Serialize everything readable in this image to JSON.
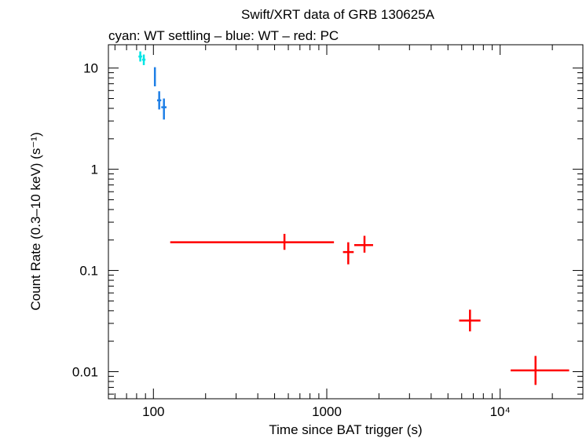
{
  "chart_data": {
    "type": "scatter",
    "title": "Swift/XRT data of GRB 130625A",
    "subtitle": "cyan: WT settling – blue: WT – red: PC",
    "xlabel": "Time since BAT trigger (s)",
    "ylabel": "Count Rate (0.3–10 keV) (s⁻¹)",
    "x_scale": "log",
    "y_scale": "log",
    "xlim": [
      55,
      30000
    ],
    "ylim": [
      0.0054,
      17
    ],
    "x_ticks": [
      {
        "value": 100,
        "label": "100"
      },
      {
        "value": 1000,
        "label": "1000"
      },
      {
        "value": 10000,
        "label": "10⁴"
      }
    ],
    "y_ticks": [
      {
        "value": 0.01,
        "label": "0.01"
      },
      {
        "value": 0.1,
        "label": "0.1"
      },
      {
        "value": 1,
        "label": "1"
      },
      {
        "value": 10,
        "label": "10"
      }
    ],
    "grid": false,
    "series": [
      {
        "color": "#00e5e5",
        "points": [
          {
            "x": 84,
            "xlo": 82,
            "xhi": 86,
            "y": 13.0,
            "ylo": 11.6,
            "yhi": 14.6
          },
          {
            "x": 88,
            "xlo": 86,
            "xhi": 90,
            "y": 12.1,
            "ylo": 10.7,
            "yhi": 13.6
          }
        ]
      },
      {
        "color": "#1e7fe6",
        "points": [
          {
            "x": 102,
            "xlo": 101,
            "xhi": 103,
            "y": 8.4,
            "ylo": 6.6,
            "yhi": 10.2
          },
          {
            "x": 108,
            "xlo": 105,
            "xhi": 111,
            "y": 4.8,
            "ylo": 3.9,
            "yhi": 5.9
          },
          {
            "x": 115,
            "xlo": 111,
            "xhi": 119,
            "y": 4.1,
            "ylo": 3.1,
            "yhi": 5.0
          }
        ]
      },
      {
        "color": "#ff0000",
        "points": [
          {
            "x": 570,
            "xlo": 125,
            "xhi": 1100,
            "y": 0.19,
            "ylo": 0.16,
            "yhi": 0.23
          },
          {
            "x": 1330,
            "xlo": 1240,
            "xhi": 1430,
            "y": 0.152,
            "ylo": 0.115,
            "yhi": 0.19
          },
          {
            "x": 1650,
            "xlo": 1440,
            "xhi": 1850,
            "y": 0.178,
            "ylo": 0.15,
            "yhi": 0.22
          },
          {
            "x": 6700,
            "xlo": 5800,
            "xhi": 7700,
            "y": 0.032,
            "ylo": 0.025,
            "yhi": 0.041
          },
          {
            "x": 16000,
            "xlo": 11500,
            "xhi": 25000,
            "y": 0.0103,
            "ylo": 0.0074,
            "yhi": 0.0143
          }
        ]
      }
    ]
  }
}
